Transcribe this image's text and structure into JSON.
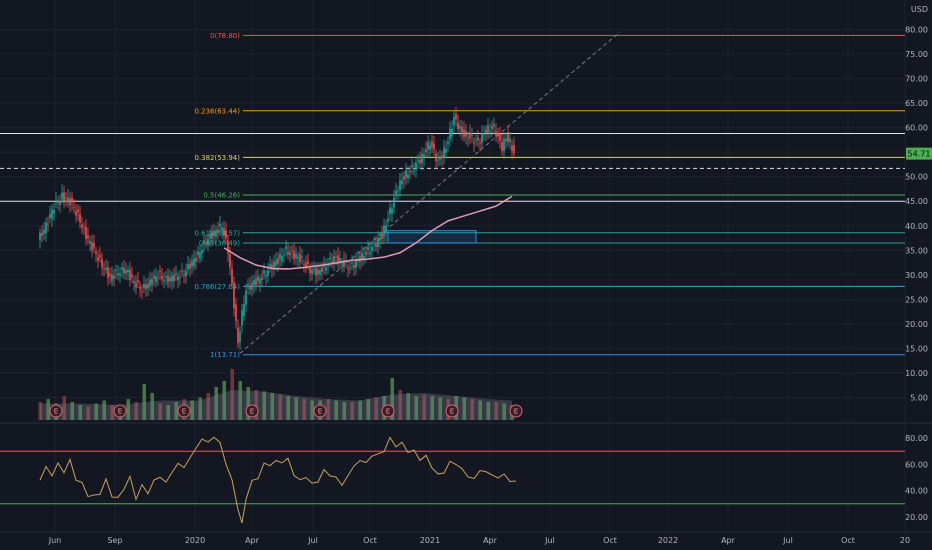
{
  "currency_label": "USD",
  "last_price_tag": "54.71",
  "colors": {
    "background": "#131722",
    "grid": "#1e2230",
    "candle_up": "#26a69a",
    "candle_down": "#ef5350",
    "ma_line": "#e39ab3",
    "rsi_line": "#c9a15a",
    "rsi_upper": "#ef5350",
    "rsi_lower": "#4caf50",
    "volume_up": "#4c8a4a",
    "volume_down": "#8a3a3a",
    "volume_ma": "#787b86",
    "trendline": "#787b86",
    "horizontal_line": "#e0e0e0",
    "selection_box": "#2196f3"
  },
  "chart_data": {
    "type": "candlestick",
    "x_axis_labels": [
      "Jun",
      "Sep",
      "2020",
      "Apr",
      "Jul",
      "Oct",
      "2021",
      "Apr",
      "Jul",
      "Oct",
      "2022",
      "Apr",
      "Jul",
      "Oct",
      "20"
    ],
    "price_axis": {
      "ticks": [
        "80.00",
        "75.00",
        "70.00",
        "65.00",
        "60.00",
        "55.00",
        "50.00",
        "45.00",
        "40.00",
        "35.00",
        "30.00",
        "25.00",
        "20.00",
        "15.00",
        "10.00",
        "5.00"
      ],
      "range": [
        0,
        85
      ]
    },
    "rsi_axis": {
      "ticks": [
        "80.00",
        "60.00",
        "40.00",
        "20.00"
      ],
      "range": [
        10,
        90
      ],
      "upper_band": 70,
      "lower_band": 30
    },
    "fib_levels": [
      {
        "label": "0(78.80)",
        "value": 78.8,
        "color": "#ef5350"
      },
      {
        "label": "0.236(63.44)",
        "value": 63.44,
        "color": "#ff9800"
      },
      {
        "label": "0.382(53.94)",
        "value": 53.94,
        "color": "#d4d46a"
      },
      {
        "label": "0.5(46.26)",
        "value": 46.26,
        "color": "#4caf50"
      },
      {
        "label": "0.618(38.57)",
        "value": 38.57,
        "color": "#26a69a"
      },
      {
        "label": "0.65(36.49)",
        "value": 36.49,
        "color": "#26a69a"
      },
      {
        "label": "0.786(27.64)",
        "value": 27.64,
        "color": "#26a6c9"
      },
      {
        "label": "1(13.71)",
        "value": 13.71,
        "color": "#2196f3"
      }
    ],
    "horizontal_lines": [
      58.8,
      45.0
    ],
    "dashed_line": 51.7,
    "price_series": [
      [
        0,
        37.0
      ],
      [
        4,
        40.0
      ],
      [
        8,
        44.0
      ],
      [
        12,
        46.0
      ],
      [
        16,
        45.0
      ],
      [
        20,
        42.0
      ],
      [
        24,
        38.0
      ],
      [
        28,
        35.0
      ],
      [
        32,
        32.0
      ],
      [
        36,
        29.5
      ],
      [
        40,
        30.5
      ],
      [
        44,
        31.0
      ],
      [
        48,
        28.5
      ],
      [
        52,
        27.0
      ],
      [
        56,
        28.5
      ],
      [
        60,
        30.0
      ],
      [
        64,
        29.0
      ],
      [
        68,
        29.5
      ],
      [
        72,
        30.0
      ],
      [
        76,
        32.0
      ],
      [
        80,
        34.0
      ],
      [
        84,
        37.0
      ],
      [
        88,
        38.5
      ],
      [
        92,
        40.0
      ],
      [
        95,
        35.0
      ],
      [
        98,
        24.0
      ],
      [
        100,
        16.0
      ],
      [
        102,
        22.0
      ],
      [
        104,
        27.0
      ],
      [
        108,
        28.5
      ],
      [
        112,
        29.5
      ],
      [
        116,
        31.5
      ],
      [
        120,
        33.0
      ],
      [
        124,
        35.0
      ],
      [
        128,
        34.0
      ],
      [
        132,
        33.0
      ],
      [
        136,
        31.0
      ],
      [
        140,
        30.5
      ],
      [
        144,
        32.0
      ],
      [
        148,
        33.5
      ],
      [
        152,
        32.5
      ],
      [
        156,
        31.5
      ],
      [
        160,
        33.0
      ],
      [
        164,
        34.5
      ],
      [
        168,
        36.0
      ],
      [
        172,
        38.0
      ],
      [
        176,
        43.0
      ],
      [
        180,
        48.0
      ],
      [
        184,
        50.5
      ],
      [
        188,
        52.0
      ],
      [
        192,
        54.0
      ],
      [
        194,
        55.5
      ],
      [
        196,
        57.0
      ],
      [
        200,
        53.0
      ],
      [
        204,
        56.0
      ],
      [
        208,
        62.0
      ],
      [
        212,
        59.0
      ],
      [
        216,
        58.0
      ],
      [
        220,
        57.0
      ],
      [
        224,
        59.5
      ],
      [
        228,
        60.0
      ],
      [
        232,
        56.0
      ],
      [
        234,
        58.0
      ],
      [
        236,
        57.0
      ],
      [
        238,
        54.7
      ]
    ],
    "ma_series": [
      [
        92,
        35.5
      ],
      [
        100,
        33.5
      ],
      [
        108,
        32.0
      ],
      [
        116,
        31.3
      ],
      [
        124,
        31.2
      ],
      [
        132,
        31.5
      ],
      [
        140,
        31.9
      ],
      [
        148,
        32.4
      ],
      [
        156,
        33.0
      ],
      [
        164,
        33.2
      ],
      [
        172,
        33.6
      ],
      [
        180,
        34.5
      ],
      [
        188,
        36.5
      ],
      [
        196,
        39.0
      ],
      [
        204,
        41.0
      ],
      [
        212,
        42.0
      ],
      [
        220,
        43.0
      ],
      [
        228,
        44.0
      ],
      [
        236,
        46.0
      ]
    ],
    "rsi_series": [
      [
        0,
        48
      ],
      [
        3,
        58
      ],
      [
        6,
        52
      ],
      [
        9,
        60
      ],
      [
        12,
        55
      ],
      [
        15,
        62
      ],
      [
        18,
        50
      ],
      [
        21,
        44
      ],
      [
        24,
        38
      ],
      [
        27,
        34
      ],
      [
        30,
        40
      ],
      [
        33,
        46
      ],
      [
        36,
        38
      ],
      [
        39,
        32
      ],
      [
        42,
        44
      ],
      [
        45,
        48
      ],
      [
        48,
        36
      ],
      [
        51,
        42
      ],
      [
        54,
        40
      ],
      [
        57,
        46
      ],
      [
        60,
        52
      ],
      [
        63,
        45
      ],
      [
        66,
        55
      ],
      [
        69,
        60
      ],
      [
        72,
        58
      ],
      [
        75,
        65
      ],
      [
        78,
        72
      ],
      [
        81,
        80
      ],
      [
        84,
        76
      ],
      [
        87,
        82
      ],
      [
        90,
        75
      ],
      [
        93,
        62
      ],
      [
        96,
        46
      ],
      [
        99,
        28
      ],
      [
        101,
        18
      ],
      [
        103,
        36
      ],
      [
        106,
        45
      ],
      [
        109,
        52
      ],
      [
        112,
        58
      ],
      [
        115,
        62
      ],
      [
        118,
        60
      ],
      [
        121,
        64
      ],
      [
        124,
        62
      ],
      [
        127,
        54
      ],
      [
        130,
        46
      ],
      [
        133,
        52
      ],
      [
        136,
        44
      ],
      [
        139,
        48
      ],
      [
        142,
        55
      ],
      [
        145,
        52
      ],
      [
        148,
        50
      ],
      [
        151,
        44
      ],
      [
        154,
        52
      ],
      [
        157,
        58
      ],
      [
        160,
        64
      ],
      [
        163,
        60
      ],
      [
        166,
        68
      ],
      [
        169,
        66
      ],
      [
        172,
        72
      ],
      [
        175,
        78
      ],
      [
        178,
        76
      ],
      [
        181,
        74
      ],
      [
        184,
        72
      ],
      [
        187,
        68
      ],
      [
        190,
        66
      ],
      [
        193,
        64
      ],
      [
        196,
        60
      ],
      [
        199,
        50
      ],
      [
        202,
        56
      ],
      [
        205,
        60
      ],
      [
        208,
        62
      ],
      [
        211,
        55
      ],
      [
        214,
        52
      ],
      [
        217,
        48
      ],
      [
        220,
        56
      ],
      [
        223,
        54
      ],
      [
        226,
        52
      ],
      [
        229,
        50
      ],
      [
        232,
        52
      ],
      [
        235,
        48
      ],
      [
        238,
        46
      ]
    ],
    "volume_series": [
      [
        0,
        1.2
      ],
      [
        4,
        1.4
      ],
      [
        8,
        1.1
      ],
      [
        12,
        1.6
      ],
      [
        16,
        1.2
      ],
      [
        20,
        1.0
      ],
      [
        24,
        0.9
      ],
      [
        28,
        1.1
      ],
      [
        32,
        1.3
      ],
      [
        36,
        1.0
      ],
      [
        40,
        0.8
      ],
      [
        44,
        1.4
      ],
      [
        48,
        1.2
      ],
      [
        52,
        2.4
      ],
      [
        56,
        1.8
      ],
      [
        60,
        1.1
      ],
      [
        64,
        1.0
      ],
      [
        68,
        1.2
      ],
      [
        72,
        1.4
      ],
      [
        76,
        1.3
      ],
      [
        80,
        1.5
      ],
      [
        84,
        1.8
      ],
      [
        88,
        2.2
      ],
      [
        92,
        2.6
      ],
      [
        96,
        3.4
      ],
      [
        100,
        2.6
      ],
      [
        104,
        2.2
      ],
      [
        108,
        2.0
      ],
      [
        112,
        1.9
      ],
      [
        116,
        1.8
      ],
      [
        120,
        1.7
      ],
      [
        124,
        1.6
      ],
      [
        128,
        1.5
      ],
      [
        132,
        1.4
      ],
      [
        136,
        1.3
      ],
      [
        140,
        1.3
      ],
      [
        144,
        1.4
      ],
      [
        148,
        1.3
      ],
      [
        152,
        1.2
      ],
      [
        156,
        1.2
      ],
      [
        160,
        1.3
      ],
      [
        164,
        1.4
      ],
      [
        168,
        1.5
      ],
      [
        172,
        1.6
      ],
      [
        176,
        2.8
      ],
      [
        180,
        2.0
      ],
      [
        184,
        1.8
      ],
      [
        188,
        1.6
      ],
      [
        192,
        1.7
      ],
      [
        196,
        1.6
      ],
      [
        200,
        1.5
      ],
      [
        204,
        1.4
      ],
      [
        208,
        1.6
      ],
      [
        212,
        1.5
      ],
      [
        216,
        1.4
      ],
      [
        220,
        1.3
      ],
      [
        224,
        1.2
      ],
      [
        228,
        1.2
      ],
      [
        232,
        1.1
      ],
      [
        236,
        1.0
      ]
    ],
    "volume_ma_series": [
      [
        0,
        1.1
      ],
      [
        20,
        1.1
      ],
      [
        40,
        1.0
      ],
      [
        60,
        1.3
      ],
      [
        80,
        1.3
      ],
      [
        96,
        2.0
      ],
      [
        112,
        1.9
      ],
      [
        128,
        1.6
      ],
      [
        144,
        1.4
      ],
      [
        160,
        1.3
      ],
      [
        176,
        1.7
      ],
      [
        192,
        1.8
      ],
      [
        208,
        1.6
      ],
      [
        224,
        1.4
      ],
      [
        236,
        1.3
      ]
    ],
    "earnings_markers": [
      {
        "label": "E",
        "x": 8
      },
      {
        "label": "E",
        "x": 40
      },
      {
        "label": "E",
        "x": 72
      },
      {
        "label": "E",
        "x": 106
      },
      {
        "label": "E",
        "x": 140
      },
      {
        "label": "E",
        "x": 174
      },
      {
        "label": "E",
        "x": 206
      },
      {
        "label": "E",
        "x": 238
      }
    ],
    "selection_box": {
      "x1": 174,
      "x2": 218,
      "y1": 36.5,
      "y2": 39.0
    },
    "trendline": {
      "x1": 100,
      "y1": 14.0,
      "x2": 290,
      "y2": 79.5
    }
  }
}
